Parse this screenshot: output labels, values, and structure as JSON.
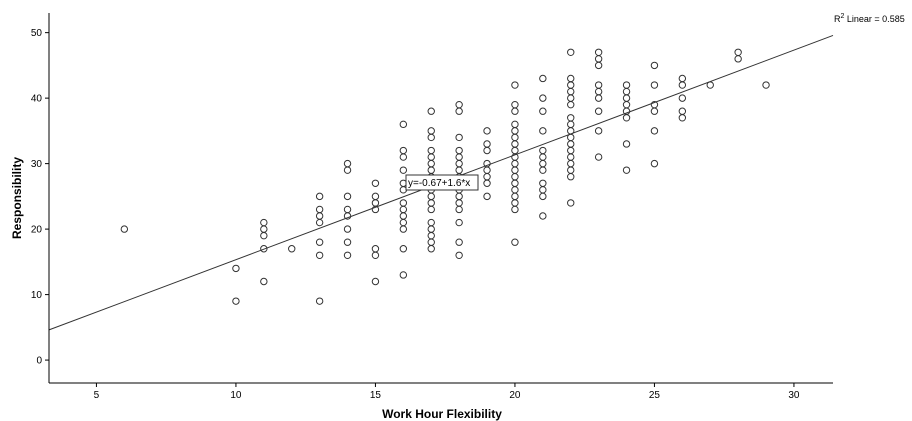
{
  "chart_data": {
    "type": "scatter",
    "xlabel": "Work Hour Flexibility",
    "ylabel": "Responsibility",
    "xlim": [
      3.3,
      31.4
    ],
    "ylim": [
      -3.5,
      53
    ],
    "xticks": [
      5,
      10,
      15,
      20,
      25,
      30
    ],
    "yticks": [
      0,
      10,
      20,
      30,
      40,
      50
    ],
    "grid": false,
    "fit_line": {
      "intercept": -0.67,
      "slope": 1.6,
      "equation_label": "y=-0.67+1.6*x",
      "r2_label": "R",
      "r2_sup": "2",
      "r2_text": " Linear = 0.585"
    },
    "points": [
      [
        6,
        20
      ],
      [
        10,
        14
      ],
      [
        10,
        9
      ],
      [
        11,
        21
      ],
      [
        11,
        20
      ],
      [
        11,
        19
      ],
      [
        11,
        17
      ],
      [
        11,
        12
      ],
      [
        12,
        17
      ],
      [
        13,
        25
      ],
      [
        13,
        23
      ],
      [
        13,
        22
      ],
      [
        13,
        21
      ],
      [
        13,
        18
      ],
      [
        13,
        16
      ],
      [
        13,
        9
      ],
      [
        14,
        30
      ],
      [
        14,
        29
      ],
      [
        14,
        25
      ],
      [
        14,
        23
      ],
      [
        14,
        22
      ],
      [
        14,
        20
      ],
      [
        14,
        18
      ],
      [
        14,
        16
      ],
      [
        15,
        27
      ],
      [
        15,
        25
      ],
      [
        15,
        24
      ],
      [
        15,
        23
      ],
      [
        15,
        17
      ],
      [
        15,
        16
      ],
      [
        15,
        12
      ],
      [
        16,
        36
      ],
      [
        16,
        32
      ],
      [
        16,
        31
      ],
      [
        16,
        29
      ],
      [
        16,
        27
      ],
      [
        16,
        26
      ],
      [
        16,
        24
      ],
      [
        16,
        23
      ],
      [
        16,
        22
      ],
      [
        16,
        21
      ],
      [
        16,
        20
      ],
      [
        16,
        17
      ],
      [
        16,
        13
      ],
      [
        17,
        38
      ],
      [
        17,
        35
      ],
      [
        17,
        34
      ],
      [
        17,
        32
      ],
      [
        17,
        31
      ],
      [
        17,
        30
      ],
      [
        17,
        29
      ],
      [
        17,
        28
      ],
      [
        17,
        27
      ],
      [
        17,
        26
      ],
      [
        17,
        25
      ],
      [
        17,
        24
      ],
      [
        17,
        23
      ],
      [
        17,
        21
      ],
      [
        17,
        20
      ],
      [
        17,
        19
      ],
      [
        17,
        18
      ],
      [
        17,
        17
      ],
      [
        18,
        39
      ],
      [
        18,
        38
      ],
      [
        18,
        34
      ],
      [
        18,
        32
      ],
      [
        18,
        31
      ],
      [
        18,
        30
      ],
      [
        18,
        29
      ],
      [
        18,
        28
      ],
      [
        18,
        27
      ],
      [
        18,
        26
      ],
      [
        18,
        25
      ],
      [
        18,
        24
      ],
      [
        18,
        23
      ],
      [
        18,
        21
      ],
      [
        18,
        18
      ],
      [
        18,
        16
      ],
      [
        19,
        35
      ],
      [
        19,
        33
      ],
      [
        19,
        32
      ],
      [
        19,
        30
      ],
      [
        19,
        29
      ],
      [
        19,
        28
      ],
      [
        19,
        27
      ],
      [
        19,
        25
      ],
      [
        20,
        42
      ],
      [
        20,
        39
      ],
      [
        20,
        38
      ],
      [
        20,
        36
      ],
      [
        20,
        35
      ],
      [
        20,
        34
      ],
      [
        20,
        33
      ],
      [
        20,
        32
      ],
      [
        20,
        31
      ],
      [
        20,
        30
      ],
      [
        20,
        29
      ],
      [
        20,
        28
      ],
      [
        20,
        27
      ],
      [
        20,
        26
      ],
      [
        20,
        25
      ],
      [
        20,
        24
      ],
      [
        20,
        23
      ],
      [
        20,
        18
      ],
      [
        21,
        43
      ],
      [
        21,
        40
      ],
      [
        21,
        38
      ],
      [
        21,
        35
      ],
      [
        21,
        32
      ],
      [
        21,
        31
      ],
      [
        21,
        30
      ],
      [
        21,
        29
      ],
      [
        21,
        27
      ],
      [
        21,
        26
      ],
      [
        21,
        25
      ],
      [
        21,
        22
      ],
      [
        22,
        47
      ],
      [
        22,
        43
      ],
      [
        22,
        42
      ],
      [
        22,
        41
      ],
      [
        22,
        40
      ],
      [
        22,
        39
      ],
      [
        22,
        37
      ],
      [
        22,
        36
      ],
      [
        22,
        35
      ],
      [
        22,
        34
      ],
      [
        22,
        33
      ],
      [
        22,
        32
      ],
      [
        22,
        31
      ],
      [
        22,
        30
      ],
      [
        22,
        29
      ],
      [
        22,
        28
      ],
      [
        22,
        24
      ],
      [
        23,
        47
      ],
      [
        23,
        46
      ],
      [
        23,
        45
      ],
      [
        23,
        42
      ],
      [
        23,
        41
      ],
      [
        23,
        40
      ],
      [
        23,
        38
      ],
      [
        23,
        35
      ],
      [
        23,
        31
      ],
      [
        24,
        42
      ],
      [
        24,
        41
      ],
      [
        24,
        40
      ],
      [
        24,
        39
      ],
      [
        24,
        38
      ],
      [
        24,
        37
      ],
      [
        24,
        33
      ],
      [
        24,
        29
      ],
      [
        25,
        45
      ],
      [
        25,
        42
      ],
      [
        25,
        39
      ],
      [
        25,
        38
      ],
      [
        25,
        35
      ],
      [
        25,
        30
      ],
      [
        26,
        43
      ],
      [
        26,
        42
      ],
      [
        26,
        40
      ],
      [
        26,
        38
      ],
      [
        26,
        37
      ],
      [
        27,
        42
      ],
      [
        28,
        47
      ],
      [
        28,
        46
      ],
      [
        29,
        42
      ]
    ]
  }
}
